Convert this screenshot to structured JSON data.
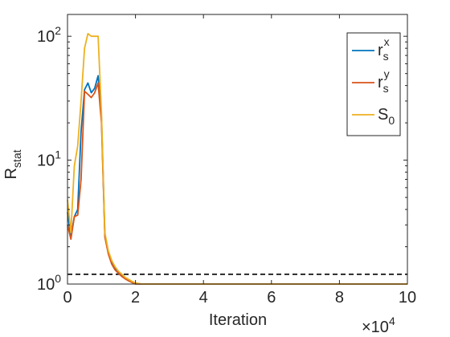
{
  "chart_data": {
    "type": "line",
    "xlabel": "Iteration",
    "ylabel_main": "R",
    "ylabel_sub": "stat",
    "x_multiplier_label": "×10",
    "x_multiplier_exp": "4",
    "xlim": [
      0,
      100000
    ],
    "ylim": [
      1,
      150
    ],
    "yscale": "log",
    "xticks": [
      0,
      20000,
      40000,
      60000,
      80000,
      100000
    ],
    "xtick_labels": [
      "0",
      "2",
      "4",
      "6",
      "8",
      "10"
    ],
    "yticks": [
      1,
      10,
      100
    ],
    "ytick_labels": [
      {
        "base": "10",
        "exp": "0"
      },
      {
        "base": "10",
        "exp": "1"
      },
      {
        "base": "10",
        "exp": "2"
      }
    ],
    "reference_line": {
      "y": 1.2,
      "style": "dashed",
      "color": "#000000"
    },
    "grid": false,
    "legend_position": "top-right",
    "series": [
      {
        "name": "r",
        "name_sub": "s",
        "name_sup": "x",
        "color": "#0072BD",
        "x": [
          0,
          1000,
          2000,
          3000,
          4000,
          5000,
          6000,
          7000,
          8000,
          9000,
          10000,
          11000,
          12000,
          13000,
          14000,
          15000,
          16000,
          17000,
          18000,
          19000,
          20000,
          22000,
          25000,
          30000,
          40000,
          50000,
          60000,
          70000,
          80000,
          90000,
          100000
        ],
        "values": [
          3.8,
          2.4,
          3.5,
          4.0,
          17,
          37,
          42,
          35,
          38,
          48,
          22,
          2.5,
          1.8,
          1.5,
          1.35,
          1.25,
          1.18,
          1.12,
          1.08,
          1.04,
          1.01,
          1.0,
          1.0,
          1.0,
          1.0,
          1.0,
          1.0,
          1.0,
          1.0,
          1.0,
          1.0
        ]
      },
      {
        "name": "r",
        "name_sub": "s",
        "name_sup": "y",
        "color": "#D95319",
        "x": [
          0,
          1000,
          2000,
          3000,
          4000,
          5000,
          6000,
          7000,
          8000,
          9000,
          10000,
          11000,
          12000,
          13000,
          14000,
          15000,
          16000,
          17000,
          18000,
          19000,
          20000,
          22000,
          25000,
          30000,
          40000,
          50000,
          60000,
          70000,
          80000,
          90000,
          100000
        ],
        "values": [
          3.0,
          2.3,
          3.5,
          3.6,
          7,
          36,
          34,
          32,
          35,
          42,
          20,
          2.4,
          1.75,
          1.45,
          1.3,
          1.22,
          1.15,
          1.1,
          1.06,
          1.03,
          1.0,
          1.0,
          1.0,
          1.0,
          1.0,
          1.0,
          1.0,
          1.0,
          1.0,
          1.0,
          1.0
        ]
      },
      {
        "name": "S",
        "name_sub": "0",
        "name_sup": "",
        "color": "#EDB120",
        "x": [
          0,
          1000,
          2000,
          3000,
          4000,
          5000,
          6000,
          7000,
          8000,
          9000,
          10000,
          11000,
          12000,
          13000,
          14000,
          15000,
          16000,
          17000,
          18000,
          19000,
          20000,
          22000,
          25000,
          30000,
          40000,
          50000,
          60000,
          70000,
          80000,
          90000,
          100000
        ],
        "values": [
          4.8,
          2.6,
          9,
          13,
          30,
          80,
          105,
          100,
          100,
          100,
          24,
          2.6,
          1.85,
          1.55,
          1.38,
          1.27,
          1.2,
          1.13,
          1.09,
          1.05,
          1.02,
          1.0,
          1.0,
          1.0,
          1.0,
          1.0,
          1.0,
          1.0,
          1.0,
          1.0,
          1.0
        ]
      }
    ]
  }
}
